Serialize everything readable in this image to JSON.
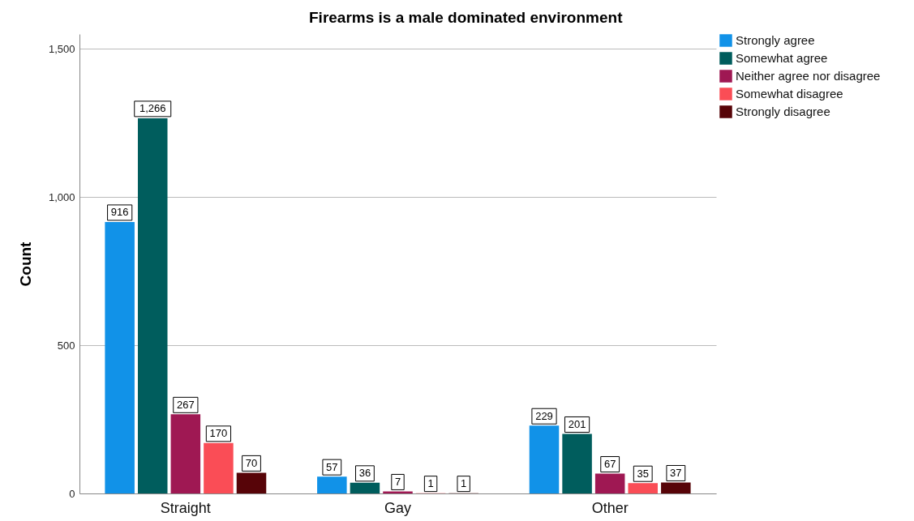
{
  "chart_data": {
    "type": "bar",
    "title": "Firearms is a male dominated environment",
    "ylabel": "Count",
    "categories": [
      "Straight",
      "Gay",
      "Other"
    ],
    "series": [
      {
        "name": "Strongly agree",
        "color": "#1192e8",
        "values": [
          916,
          57,
          229
        ],
        "value_labels": [
          "916",
          "57",
          "229"
        ]
      },
      {
        "name": "Somewhat agree",
        "color": "#005d5d",
        "values": [
          1266,
          36,
          201
        ],
        "value_labels": [
          "1,266",
          "36",
          "201"
        ]
      },
      {
        "name": "Neither agree nor disagree",
        "color": "#9f1853",
        "values": [
          267,
          7,
          67
        ],
        "value_labels": [
          "267",
          "7",
          "67"
        ]
      },
      {
        "name": "Somewhat disagree",
        "color": "#fa4d56",
        "values": [
          170,
          1,
          35
        ],
        "value_labels": [
          "170",
          "1",
          "35"
        ]
      },
      {
        "name": "Strongly disagree",
        "color": "#570408",
        "values": [
          70,
          1,
          37
        ],
        "value_labels": [
          "70",
          "1",
          "37"
        ]
      }
    ],
    "ylim": [
      0,
      1550
    ],
    "yticks": [
      0,
      500,
      {
        "value": 1000,
        "label": "1,000"
      },
      {
        "value": 1500,
        "label": "1,500"
      }
    ],
    "grid": "y",
    "legend": "top right"
  }
}
